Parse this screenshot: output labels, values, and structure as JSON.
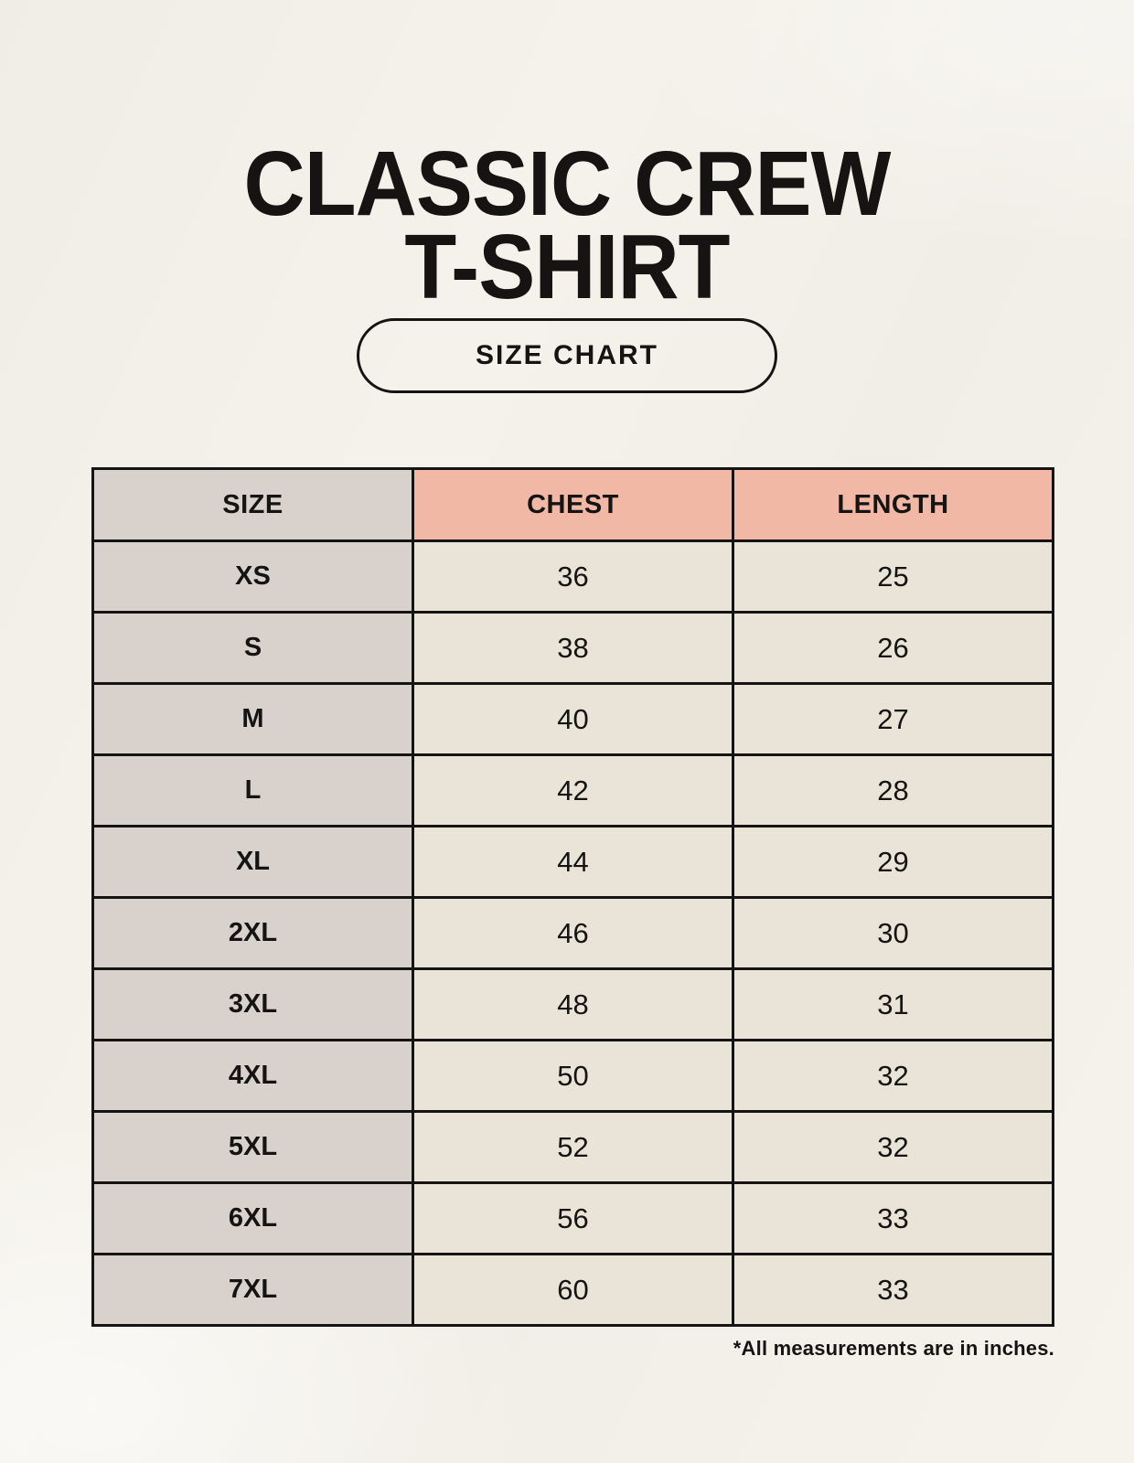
{
  "page": {
    "title_line1": "CLASSIC CREW",
    "title_line2": "T-SHIRT",
    "badge_label": "SIZE CHART",
    "footnote": "*All measurements are in inches."
  },
  "colors": {
    "background": "#f3f0e9",
    "header_accent": "#f0b8a5",
    "size_column": "#d9d2cc",
    "data_cell": "#eae4d8",
    "border_and_text": "#151412"
  },
  "chart_data": {
    "type": "table",
    "title": "Classic Crew T-Shirt Size Chart",
    "columns": [
      "SIZE",
      "CHEST",
      "LENGTH"
    ],
    "rows": [
      [
        "XS",
        "36",
        "25"
      ],
      [
        "S",
        "38",
        "26"
      ],
      [
        "M",
        "40",
        "27"
      ],
      [
        "L",
        "42",
        "28"
      ],
      [
        "XL",
        "44",
        "29"
      ],
      [
        "2XL",
        "46",
        "30"
      ],
      [
        "3XL",
        "48",
        "31"
      ],
      [
        "4XL",
        "50",
        "32"
      ],
      [
        "5XL",
        "52",
        "32"
      ],
      [
        "6XL",
        "56",
        "33"
      ],
      [
        "7XL",
        "60",
        "33"
      ]
    ],
    "units": "inches"
  }
}
